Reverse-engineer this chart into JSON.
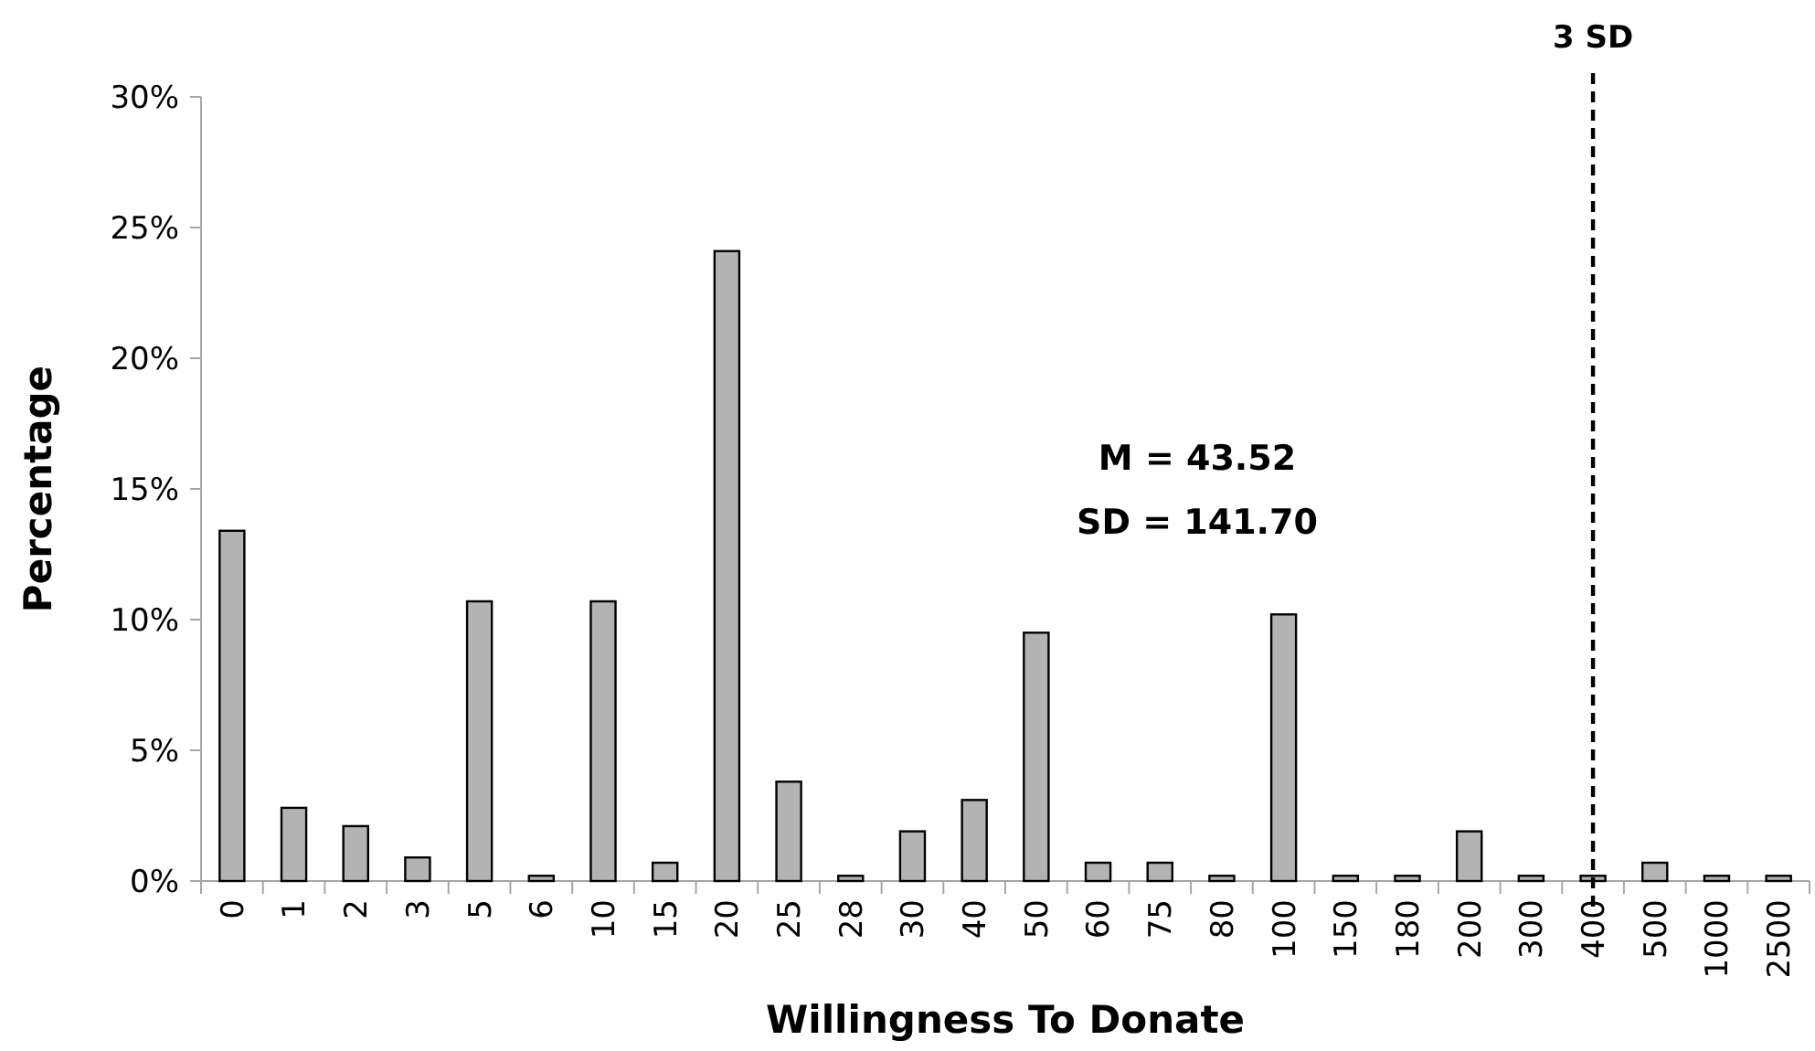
{
  "chart_data": {
    "type": "bar",
    "xlabel": "Willingness To Donate",
    "ylabel": "Percentage",
    "categories": [
      "0",
      "1",
      "2",
      "3",
      "5",
      "6",
      "10",
      "15",
      "20",
      "25",
      "28",
      "30",
      "40",
      "50",
      "60",
      "75",
      "80",
      "100",
      "150",
      "180",
      "200",
      "300",
      "400",
      "500",
      "1000",
      "2500"
    ],
    "values": [
      13.4,
      2.8,
      2.1,
      0.9,
      10.7,
      0.2,
      10.7,
      0.7,
      24.1,
      3.8,
      0.2,
      1.9,
      3.1,
      9.5,
      0.7,
      0.7,
      0.2,
      10.2,
      0.2,
      0.2,
      1.9,
      0.2,
      0.2,
      0.7,
      0.2,
      0.2
    ],
    "color": "#b3b3b3",
    "ylim": [
      0,
      30
    ],
    "yticks": [
      {
        "value": 0,
        "label": "0%"
      },
      {
        "value": 5,
        "label": "5%"
      },
      {
        "value": 10,
        "label": "10%"
      },
      {
        "value": 15,
        "label": "15%"
      },
      {
        "value": 20,
        "label": "20%"
      },
      {
        "value": 25,
        "label": "25%"
      },
      {
        "value": 30,
        "label": "30%"
      }
    ],
    "ref_lines": [
      {
        "axis": "x",
        "value": "400",
        "label": "3 SD",
        "line_style": "dashed",
        "color": "#000000"
      }
    ],
    "annotations": [
      "M = 43.52",
      "SD = 141.70"
    ]
  }
}
